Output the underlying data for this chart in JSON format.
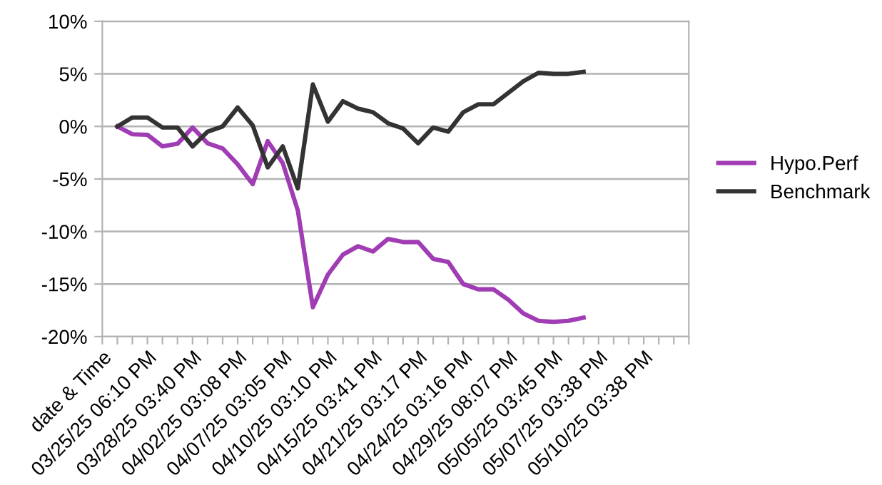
{
  "chart_data": {
    "type": "line",
    "categories": [
      "date & Time",
      null,
      null,
      "03/25/25 06:10 PM",
      null,
      null,
      "03/28/25 03:40 PM",
      null,
      null,
      "04/02/25 03:08 PM",
      null,
      null,
      "04/07/25 03:05 PM",
      null,
      null,
      "04/10/25 03:10 PM",
      null,
      null,
      "04/15/25 03:41 PM",
      null,
      null,
      "04/21/25 03:17 PM",
      null,
      null,
      "04/24/25 03:16 PM",
      null,
      null,
      "04/29/25 08:07 PM",
      null,
      null,
      "05/05/25 03:45 PM",
      null,
      null,
      "05/07/25 03:38 PM",
      null,
      null,
      "05/10/25 03:38 PM",
      null,
      null,
      null
    ],
    "series": [
      {
        "name": "Hypo.Perf",
        "color": "#a03cb4",
        "values": [
          null,
          0,
          -0.75,
          -0.8,
          -1.9,
          -1.65,
          -0.1,
          -1.6,
          -2.1,
          -3.6,
          -5.5,
          -1.4,
          -3.5,
          -8.0,
          -17.2,
          -14.1,
          -12.2,
          -11.4,
          -11.9,
          -10.7,
          -11.0,
          -11.0,
          -12.6,
          -12.9,
          -15.0,
          -15.5,
          -15.5,
          -16.5,
          -17.8,
          -18.5,
          -18.6,
          -18.5,
          -18.2,
          null,
          null,
          null,
          null,
          null,
          null,
          null
        ]
      },
      {
        "name": "Benchmark",
        "color": "#333333",
        "values": [
          null,
          0,
          0.85,
          0.85,
          -0.1,
          -0.1,
          -1.9,
          -0.5,
          0,
          1.8,
          0.1,
          -3.9,
          -1.9,
          -5.9,
          4.0,
          0.45,
          2.4,
          1.7,
          1.35,
          0.3,
          -0.2,
          -1.6,
          -0.1,
          -0.5,
          1.35,
          2.1,
          2.1,
          3.2,
          4.3,
          5.1,
          5.0,
          5.0,
          5.2,
          null,
          null,
          null,
          null,
          null,
          null,
          null
        ]
      }
    ],
    "ylim": [
      -20,
      10
    ],
    "yticks": [
      {
        "value": -20,
        "label": "-20%"
      },
      {
        "value": -15,
        "label": "-15%"
      },
      {
        "value": -10,
        "label": "-10%"
      },
      {
        "value": -5,
        "label": "-5%"
      },
      {
        "value": 0,
        "label": "0%"
      },
      {
        "value": 5,
        "label": "5%"
      },
      {
        "value": 10,
        "label": "10%"
      }
    ],
    "grid": "y",
    "legend": "right",
    "marker": "none",
    "line_style": "solid"
  }
}
